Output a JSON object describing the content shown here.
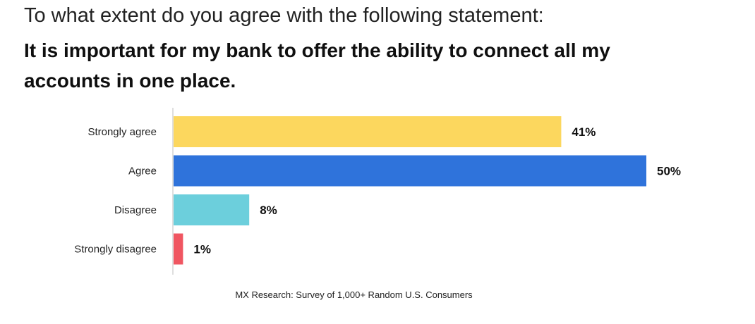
{
  "header": {
    "question": "To what extent do you agree with the following statement:",
    "statement": "It is important for my bank to offer the ability to connect all my accounts in one place."
  },
  "chart_data": {
    "type": "bar",
    "orientation": "horizontal",
    "categories": [
      "Strongly agree",
      "Agree",
      "Disagree",
      "Strongly disagree"
    ],
    "values": [
      41,
      50,
      8,
      1
    ],
    "value_labels": [
      "41%",
      "50%",
      "8%",
      "1%"
    ],
    "colors": [
      "#FCD75E",
      "#2F73DB",
      "#6CCFDC",
      "#F05661"
    ],
    "unit": "%",
    "xlim": [
      0,
      50
    ],
    "grid": false,
    "legend": "none"
  },
  "footer": {
    "source": "MX Research: Survey of 1,000+ Random U.S. Consumers"
  }
}
